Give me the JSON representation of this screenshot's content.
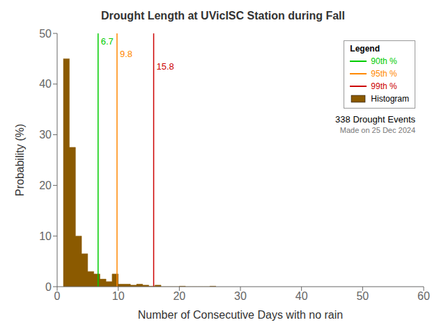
{
  "chart_data": {
    "type": "histogram",
    "title": "Drought Length at UVicISC Station during Fall",
    "x_label": "Number of Consecutive Days with no rain",
    "y_label": "Probability (%)",
    "xlim": [
      0,
      60
    ],
    "xticks": [
      0,
      10,
      20,
      30,
      40,
      50,
      60
    ],
    "ylim": [
      0,
      50
    ],
    "yticks": [
      0,
      10,
      20,
      30,
      40,
      50
    ],
    "grid": false,
    "legend": "top-right",
    "legend_title": "Legend",
    "data_labels": true,
    "series": [
      {
        "name": "90th %",
        "type": "vline",
        "color": "#00CC00",
        "values": [
          6.7
        ]
      },
      {
        "name": "95th %",
        "type": "vline",
        "color": "#FF8800",
        "values": [
          9.8
        ]
      },
      {
        "name": "99th %",
        "type": "vline",
        "color": "#CC0000",
        "values": [
          15.8
        ]
      },
      {
        "name": "Histogram",
        "type": "histogram",
        "color": "#8B5A00",
        "bins": [
          1,
          2,
          3,
          4,
          5,
          6,
          7,
          8,
          9,
          10,
          11,
          12,
          13,
          14,
          15,
          16,
          17,
          18,
          19,
          20,
          21,
          22,
          23,
          24,
          25,
          26
        ],
        "values": [
          45.0,
          27.5,
          10.0,
          6.5,
          3.0,
          2.5,
          1.5,
          1.0,
          2.5,
          0.5,
          0.5,
          0.3,
          0.5,
          0.3,
          0.1,
          0.3,
          0.0,
          0.0,
          0.0,
          0.1,
          0.0,
          0.0,
          0.0,
          0.0,
          0.1
        ]
      }
    ],
    "annotations": [
      "338 Drought Events",
      "Made on 25 Dec 2024"
    ]
  }
}
